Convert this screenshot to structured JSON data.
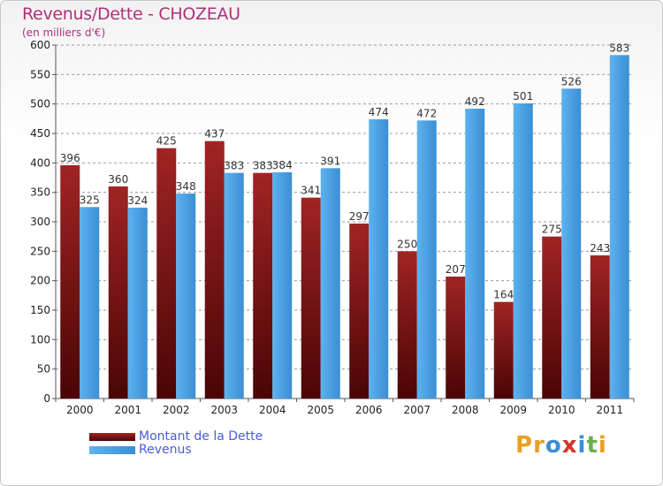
{
  "header": {
    "title": "Revenus/Dette - CHOZEAU",
    "subtitle": "(en milliers d'€)"
  },
  "colors": {
    "dette": "#7a1616",
    "revenus": "#4aa3e6",
    "title": "#b0307a",
    "legend_text": "#4a5be0"
  },
  "logo": {
    "text": "Proxiti",
    "letter_colors": [
      "#e8a020",
      "#e8a020",
      "#3a8ed8",
      "#d8322a",
      "#3a8ed8",
      "#6ab04c",
      "#e8a020"
    ]
  },
  "chart_data": {
    "type": "bar",
    "categories": [
      "2000",
      "2001",
      "2002",
      "2003",
      "2004",
      "2005",
      "2006",
      "2007",
      "2008",
      "2009",
      "2010",
      "2011"
    ],
    "series": [
      {
        "name": "Montant de la Dette",
        "values": [
          396,
          360,
          425,
          437,
          383,
          341,
          297,
          250,
          207,
          164,
          275,
          243
        ]
      },
      {
        "name": "Revenus",
        "values": [
          325,
          324,
          348,
          383,
          384,
          391,
          474,
          472,
          492,
          501,
          526,
          583
        ]
      }
    ],
    "yticks": [
      0,
      50,
      100,
      150,
      200,
      250,
      300,
      350,
      400,
      450,
      500,
      550,
      600
    ],
    "ylim": [
      0,
      600
    ],
    "grid": true,
    "legend": "bottom-left"
  }
}
